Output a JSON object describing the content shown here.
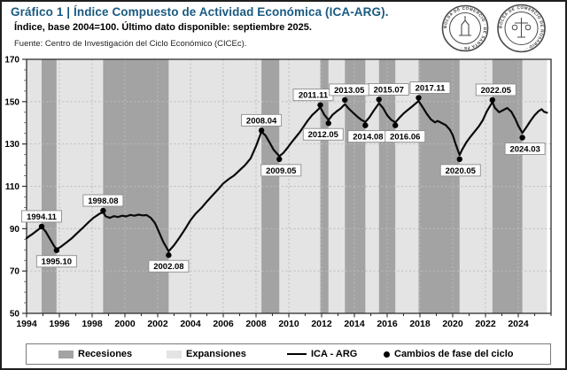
{
  "header": {
    "title": "Gráfico 1 | Índice Compuesto de Actividad Económica (ICA-ARG).",
    "subtitle": "Índice, base 2004=100. Último dato disponible: septiembre 2025.",
    "source": "Fuente: Centro de Investigación del Ciclo Económico (CICEc).",
    "title_color": "#1a5a80",
    "logos": [
      {
        "name": "seal-bolsa-comercio-santa-fe",
        "text": "BOLSA DE COMERCIO · DE SANTA FE ·"
      },
      {
        "name": "seal-bolsa-comercio-rosario",
        "text": "BOLSA DE COMERCIO DE ROSARIO ·"
      }
    ]
  },
  "legend": {
    "recessions": "Recesiones",
    "expansions": "Expansiones",
    "line": "ICA - ARG",
    "phase": "Cambios de fase del ciclo"
  },
  "chart_data": {
    "type": "line",
    "title": "Índice Compuesto de Actividad Económica (ICA-ARG)",
    "xlabel": "",
    "ylabel": "Índice, base 2004=100",
    "x_domain": [
      1994,
      2026
    ],
    "y_domain": [
      50,
      170
    ],
    "y_ticks": [
      170,
      150,
      130,
      110,
      90,
      70,
      50
    ],
    "x_ticks": [
      1994,
      1996,
      1998,
      2000,
      2002,
      2004,
      2006,
      2008,
      2010,
      2012,
      2014,
      2016,
      2018,
      2020,
      2022,
      2024
    ],
    "grid": true,
    "legend_position": "bottom",
    "colors": {
      "recession": "#a3a3a3",
      "expansion": "#e4e4e4",
      "line": "#0a0a0a",
      "grid": "#bcbcbc",
      "axis": "#2f2f2f"
    },
    "recessions": [
      [
        1994.92,
        1995.83
      ],
      [
        1998.67,
        2002.67
      ],
      [
        2008.33,
        2009.42
      ],
      [
        2011.92,
        2012.42
      ],
      [
        2013.42,
        2014.67
      ],
      [
        2015.5,
        2016.5
      ],
      [
        2017.92,
        2020.42
      ],
      [
        2022.42,
        2024.25
      ]
    ],
    "expansions": [
      [
        1994.0,
        1994.92
      ],
      [
        1995.83,
        1998.67
      ],
      [
        2002.67,
        2008.33
      ],
      [
        2009.42,
        2011.92
      ],
      [
        2012.42,
        2013.42
      ],
      [
        2014.67,
        2015.5
      ],
      [
        2016.5,
        2017.92
      ],
      [
        2020.42,
        2022.42
      ],
      [
        2024.25,
        2025.75
      ]
    ],
    "series": [
      {
        "name": "ICA - ARG",
        "points": [
          [
            1994.0,
            85.5
          ],
          [
            1994.17,
            86.5
          ],
          [
            1994.33,
            87.3
          ],
          [
            1994.5,
            88.3
          ],
          [
            1994.67,
            89.3
          ],
          [
            1994.92,
            90.8
          ],
          [
            1995.17,
            88.6
          ],
          [
            1995.42,
            85.2
          ],
          [
            1995.67,
            81.9
          ],
          [
            1995.83,
            80.3
          ],
          [
            1996.08,
            81.4
          ],
          [
            1996.42,
            83.4
          ],
          [
            1996.75,
            85.4
          ],
          [
            1997.08,
            87.9
          ],
          [
            1997.42,
            90.3
          ],
          [
            1997.75,
            92.8
          ],
          [
            1998.08,
            95.1
          ],
          [
            1998.42,
            96.9
          ],
          [
            1998.67,
            97.8
          ],
          [
            1998.83,
            95.8
          ],
          [
            1999.08,
            95.1
          ],
          [
            1999.33,
            95.9
          ],
          [
            1999.58,
            95.5
          ],
          [
            1999.83,
            96.1
          ],
          [
            2000.08,
            95.8
          ],
          [
            2000.33,
            96.5
          ],
          [
            2000.58,
            96.1
          ],
          [
            2000.83,
            96.6
          ],
          [
            2001.08,
            96.3
          ],
          [
            2001.33,
            96.4
          ],
          [
            2001.58,
            95.1
          ],
          [
            2001.83,
            92.7
          ],
          [
            2002.08,
            88.4
          ],
          [
            2002.33,
            83.9
          ],
          [
            2002.67,
            79.3
          ],
          [
            2003.0,
            82.2
          ],
          [
            2003.33,
            85.8
          ],
          [
            2003.67,
            89.8
          ],
          [
            2004.0,
            94.0
          ],
          [
            2004.33,
            97.2
          ],
          [
            2004.67,
            99.8
          ],
          [
            2005.0,
            102.8
          ],
          [
            2005.33,
            105.6
          ],
          [
            2005.67,
            108.4
          ],
          [
            2006.0,
            111.4
          ],
          [
            2006.33,
            113.4
          ],
          [
            2006.67,
            115.2
          ],
          [
            2007.0,
            117.6
          ],
          [
            2007.33,
            120.0
          ],
          [
            2007.67,
            123.2
          ],
          [
            2008.0,
            129.0
          ],
          [
            2008.33,
            135.8
          ],
          [
            2008.58,
            134.0
          ],
          [
            2008.83,
            130.6
          ],
          [
            2009.08,
            127.2
          ],
          [
            2009.42,
            124.2
          ],
          [
            2009.67,
            125.8
          ],
          [
            2009.92,
            128.2
          ],
          [
            2010.17,
            130.8
          ],
          [
            2010.42,
            133.2
          ],
          [
            2010.67,
            135.6
          ],
          [
            2010.92,
            138.4
          ],
          [
            2011.17,
            141.2
          ],
          [
            2011.42,
            143.6
          ],
          [
            2011.67,
            145.4
          ],
          [
            2011.92,
            147.3
          ],
          [
            2012.17,
            143.8
          ],
          [
            2012.42,
            141.3
          ],
          [
            2012.67,
            143.8
          ],
          [
            2012.92,
            145.4
          ],
          [
            2013.17,
            146.8
          ],
          [
            2013.42,
            148.8
          ],
          [
            2013.67,
            146.6
          ],
          [
            2013.92,
            144.8
          ],
          [
            2014.17,
            143.0
          ],
          [
            2014.42,
            141.4
          ],
          [
            2014.67,
            140.4
          ],
          [
            2014.92,
            142.6
          ],
          [
            2015.17,
            145.6
          ],
          [
            2015.5,
            149.2
          ],
          [
            2015.75,
            147.0
          ],
          [
            2016.0,
            143.6
          ],
          [
            2016.25,
            141.4
          ],
          [
            2016.5,
            140.2
          ],
          [
            2016.75,
            142.4
          ],
          [
            2017.0,
            144.4
          ],
          [
            2017.25,
            146.0
          ],
          [
            2017.5,
            147.6
          ],
          [
            2017.75,
            149.2
          ],
          [
            2017.92,
            150.3
          ],
          [
            2018.17,
            147.4
          ],
          [
            2018.42,
            144.2
          ],
          [
            2018.67,
            141.6
          ],
          [
            2018.92,
            140.2
          ],
          [
            2019.08,
            140.9
          ],
          [
            2019.33,
            139.9
          ],
          [
            2019.58,
            138.9
          ],
          [
            2019.83,
            136.7
          ],
          [
            2020.0,
            134.2
          ],
          [
            2020.17,
            130.2
          ],
          [
            2020.42,
            124.8
          ],
          [
            2020.58,
            127.4
          ],
          [
            2020.83,
            130.8
          ],
          [
            2021.08,
            133.4
          ],
          [
            2021.33,
            135.8
          ],
          [
            2021.58,
            138.2
          ],
          [
            2021.83,
            141.2
          ],
          [
            2022.08,
            145.4
          ],
          [
            2022.42,
            149.8
          ],
          [
            2022.58,
            147.0
          ],
          [
            2022.83,
            145.0
          ],
          [
            2023.08,
            146.0
          ],
          [
            2023.33,
            147.0
          ],
          [
            2023.58,
            145.2
          ],
          [
            2023.83,
            141.6
          ],
          [
            2024.0,
            138.6
          ],
          [
            2024.25,
            135.2
          ],
          [
            2024.5,
            138.0
          ],
          [
            2024.75,
            141.0
          ],
          [
            2025.0,
            143.6
          ],
          [
            2025.25,
            145.6
          ],
          [
            2025.42,
            146.4
          ],
          [
            2025.58,
            145.2
          ],
          [
            2025.75,
            144.8
          ]
        ]
      }
    ],
    "phase_changes": [
      {
        "label": "1994.11",
        "x": 1994.92,
        "y": 91.0,
        "pos": "above",
        "dx": 0
      },
      {
        "label": "1995.10",
        "x": 1995.83,
        "y": 79.8,
        "pos": "below",
        "dx": 0
      },
      {
        "label": "1998.08",
        "x": 1998.67,
        "y": 98.5,
        "pos": "above",
        "dx": 0
      },
      {
        "label": "2002.08",
        "x": 2002.67,
        "y": 77.5,
        "pos": "below",
        "dx": 0
      },
      {
        "label": "2008.04",
        "x": 2008.33,
        "y": 136.4,
        "pos": "above",
        "dx": 0
      },
      {
        "label": "2009.05",
        "x": 2009.42,
        "y": 122.8,
        "pos": "below",
        "dx": 2
      },
      {
        "label": "2011.11",
        "x": 2011.92,
        "y": 148.4,
        "pos": "above",
        "dx": -8
      },
      {
        "label": "2012.05",
        "x": 2012.42,
        "y": 139.8,
        "pos": "below",
        "dx": -6
      },
      {
        "label": "2013.05",
        "x": 2013.42,
        "y": 150.8,
        "pos": "above",
        "dx": 5
      },
      {
        "label": "2014.08",
        "x": 2014.67,
        "y": 138.8,
        "pos": "below",
        "dx": 3
      },
      {
        "label": "2015.07",
        "x": 2015.5,
        "y": 151.0,
        "pos": "above",
        "dx": 11
      },
      {
        "label": "2016.06",
        "x": 2016.5,
        "y": 138.8,
        "pos": "below",
        "dx": 11
      },
      {
        "label": "2017.11",
        "x": 2017.92,
        "y": 151.8,
        "pos": "above",
        "dx": 13
      },
      {
        "label": "2020.05",
        "x": 2020.42,
        "y": 122.8,
        "pos": "below",
        "dx": 1
      },
      {
        "label": "2022.05",
        "x": 2022.42,
        "y": 150.8,
        "pos": "above",
        "dx": 4
      },
      {
        "label": "2024.03",
        "x": 2024.25,
        "y": 133.0,
        "pos": "below",
        "dx": 3
      }
    ]
  }
}
